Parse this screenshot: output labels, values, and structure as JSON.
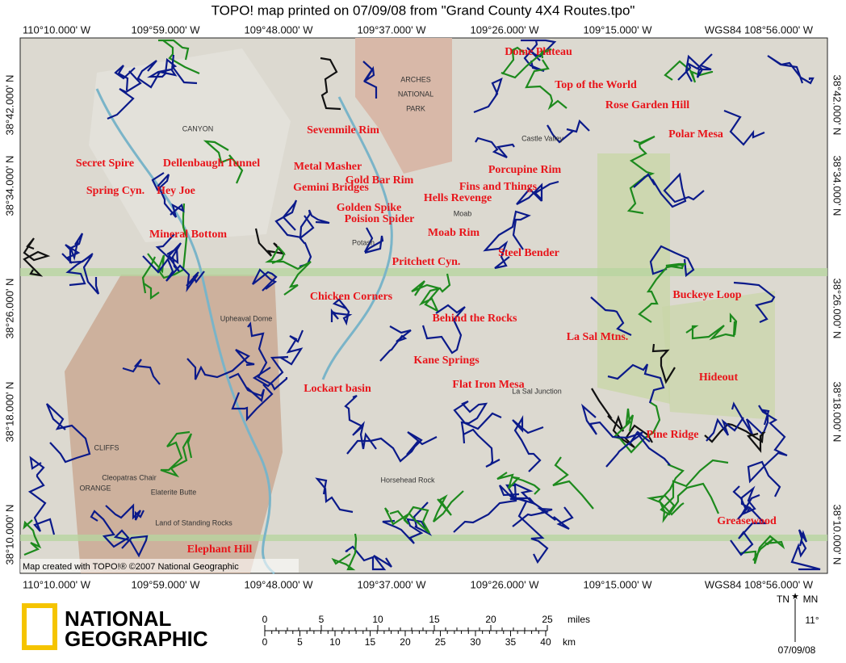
{
  "title": "TOPO! map printed on 07/09/08 from \"Grand County 4X4 Routes.tpo\"",
  "longitudes": [
    "110°10.000' W",
    "109°59.000' W",
    "109°48.000' W",
    "109°37.000' W",
    "109°26.000' W",
    "109°15.000' W",
    "WGS84 108°56.000' W"
  ],
  "latitudes": [
    "38°42.000' N",
    "38°34.000' N",
    "38°26.000' N",
    "38°18.000' N",
    "38°10.000' N"
  ],
  "routes": [
    "Dome Plateau",
    "Top of the World",
    "Rose Garden Hill",
    "Sevenmile Rim",
    "Polar Mesa",
    "Secret Spire",
    "Dellenbaugh Tunnel",
    "Metal Masher",
    "Porcupine Rim",
    "Gold Bar Rim",
    "Gemini Bridges",
    "Fins and Things",
    "Spring Cyn.",
    "Hey Joe",
    "Hells Revenge",
    "Golden Spike",
    "Poision Spider",
    "Mineral Bottom",
    "Moab Rim",
    "Steel Bender",
    "Pritchett Cyn.",
    "Chicken Corners",
    "Buckeye Loop",
    "Behind the Rocks",
    "La Sal Mtns.",
    "Kane Springs",
    "Hideout",
    "Flat Iron Mesa",
    "Lockart basin",
    "Pine Ridge",
    "Greasewood",
    "Elephant Hill"
  ],
  "places": [
    "ARCHES",
    "NATIONAL",
    "PARK",
    "Moab",
    "Castle Valley",
    "CANYON",
    "Potash",
    "Upheaval Dome",
    "Cleopatras Chair",
    "Elaterite Butte",
    "Land of Standing Rocks",
    "La Sal Junction",
    "Horsehead Rock",
    "ORANGE",
    "CLIFFS"
  ],
  "credit": "Map created with TOPO!® ©2007 National Geographic",
  "logo": [
    "NATIONAL",
    "GEOGRAPHIC"
  ],
  "scale": {
    "miles": [
      0,
      5,
      10,
      15,
      20,
      25
    ],
    "miles_unit": "miles",
    "km": [
      0,
      5,
      10,
      15,
      20,
      25,
      30,
      35,
      40
    ],
    "km_unit": "km"
  },
  "declination": {
    "true_north": "TN",
    "magnetic_north": "MN",
    "angle": "11°",
    "date": "07/09/08"
  }
}
